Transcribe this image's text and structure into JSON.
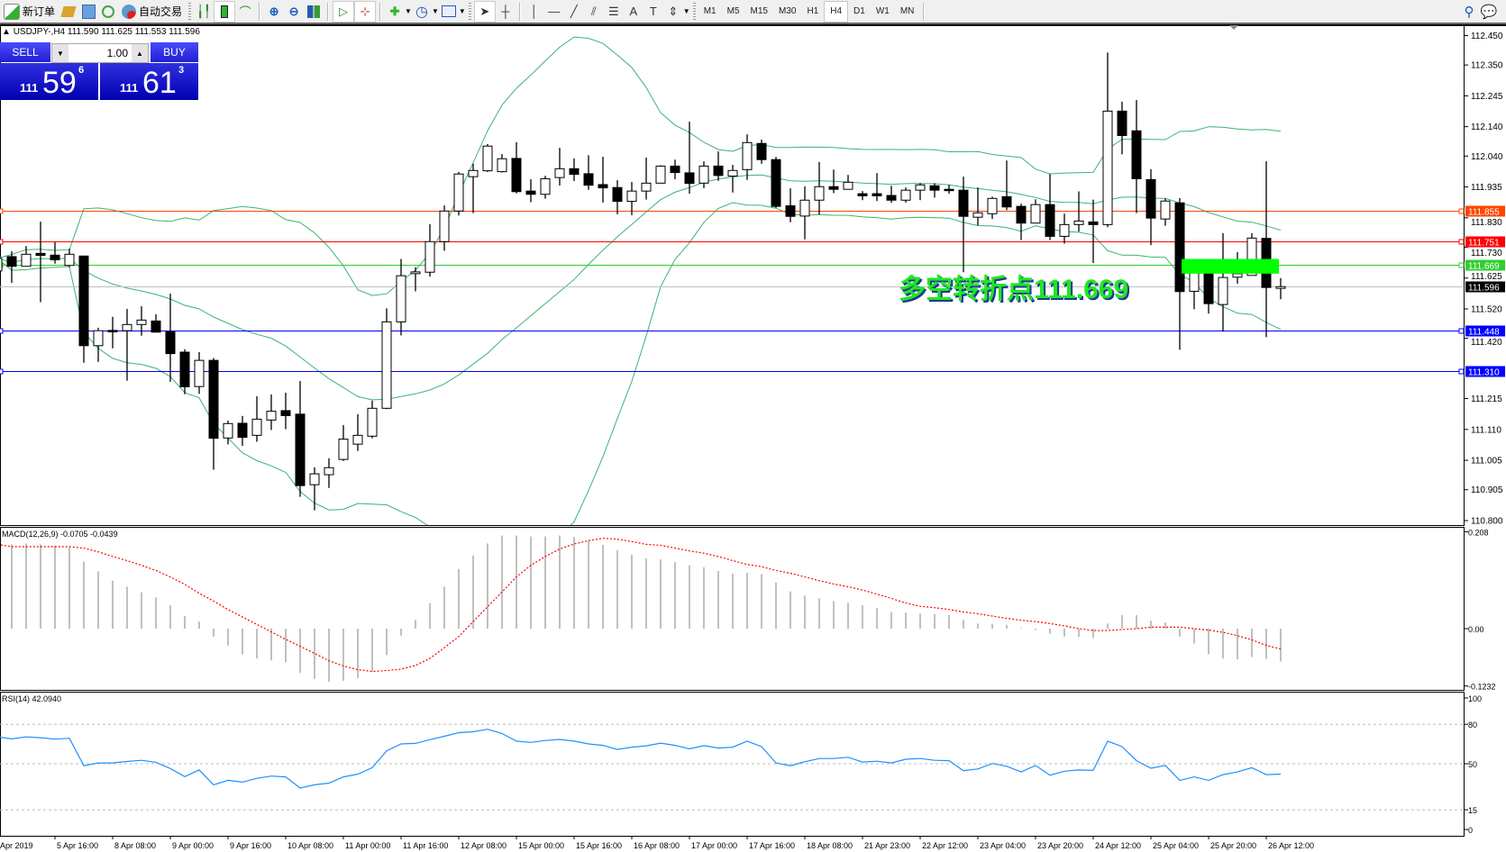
{
  "toolbar": {
    "new_order": "新订单",
    "auto_trading": "自动交易",
    "timeframes": [
      "M1",
      "M5",
      "M15",
      "M30",
      "H1",
      "H4",
      "D1",
      "W1",
      "MN"
    ],
    "active_timeframe": "H4"
  },
  "chart_header": "USDJPY-,H4  111.590 111.625 111.553 111.596",
  "trade_panel": {
    "sell_label": "SELL",
    "buy_label": "BUY",
    "volume": "1.00",
    "sell_price": {
      "big": "111",
      "main": "59",
      "sup": "6"
    },
    "buy_price": {
      "big": "111",
      "main": "61",
      "sup": "3"
    }
  },
  "annotation": {
    "text": "多空转折点111.669",
    "color": "#22e622",
    "box_price_range": [
      111.64,
      111.69
    ],
    "box_color": "#00ff00"
  },
  "chart_data": [
    {
      "type": "candlestick",
      "symbol": "USDJPY-",
      "timeframe": "H4",
      "ylim": [
        110.8,
        112.45
      ],
      "yticks": [
        "112.450",
        "112.350",
        "112.245",
        "112.140",
        "112.040",
        "111.935",
        "111.830",
        "111.730",
        "111.625",
        "111.520",
        "111.420",
        "111.215",
        "111.110",
        "111.005",
        "110.905",
        "110.800"
      ],
      "indicator": "Bollinger Bands",
      "price_lines": [
        {
          "value": "111.855",
          "color": "#ff4500"
        },
        {
          "value": "111.751",
          "color": "#ff0000"
        },
        {
          "value": "111.669",
          "color": "#32cd32"
        },
        {
          "value": "111.596",
          "color": "#000000",
          "line_color": "#c0c0c0"
        },
        {
          "value": "111.448",
          "color": "#0000ff"
        },
        {
          "value": "111.310",
          "color": "#0000ff"
        }
      ],
      "ohlc": [
        [
          111.649,
          111.7,
          111.64,
          111.692
        ],
        [
          111.698,
          111.716,
          111.609,
          111.665
        ],
        [
          111.665,
          111.734,
          111.665,
          111.706
        ],
        [
          111.709,
          111.817,
          111.543,
          111.702
        ],
        [
          111.703,
          111.747,
          111.674,
          111.687
        ],
        [
          111.668,
          111.725,
          111.662,
          111.706
        ],
        [
          111.7,
          111.7,
          111.337,
          111.395
        ],
        [
          111.395,
          111.456,
          111.34,
          111.446
        ],
        [
          111.447,
          111.493,
          111.386,
          111.442
        ],
        [
          111.446,
          111.52,
          111.276,
          111.467
        ],
        [
          111.467,
          111.529,
          111.429,
          111.482
        ],
        [
          111.479,
          111.502,
          111.441,
          111.441
        ],
        [
          111.443,
          111.572,
          111.272,
          111.368
        ],
        [
          111.373,
          111.383,
          111.23,
          111.255
        ],
        [
          111.256,
          111.373,
          111.231,
          111.345
        ],
        [
          111.345,
          111.353,
          110.973,
          111.08
        ],
        [
          111.081,
          111.14,
          111.059,
          111.13
        ],
        [
          111.131,
          111.156,
          111.054,
          111.083
        ],
        [
          111.09,
          111.223,
          111.068,
          111.145
        ],
        [
          111.142,
          111.229,
          111.108,
          111.172
        ],
        [
          111.174,
          111.235,
          111.111,
          111.157
        ],
        [
          111.162,
          111.275,
          110.881,
          110.919
        ],
        [
          110.922,
          110.981,
          110.835,
          110.959
        ],
        [
          110.956,
          111.012,
          110.911,
          110.98
        ],
        [
          111.008,
          111.125,
          111.003,
          111.077
        ],
        [
          111.06,
          111.162,
          111.037,
          111.09
        ],
        [
          111.087,
          111.208,
          111.08,
          111.182
        ],
        [
          111.182,
          111.522,
          111.179,
          111.476
        ],
        [
          111.476,
          111.69,
          111.43,
          111.633
        ],
        [
          111.64,
          111.662,
          111.58,
          111.646
        ],
        [
          111.645,
          111.808,
          111.63,
          111.749
        ],
        [
          111.749,
          111.872,
          111.718,
          111.853
        ],
        [
          111.853,
          111.986,
          111.838,
          111.979
        ],
        [
          111.97,
          112.014,
          111.846,
          111.991
        ],
        [
          111.99,
          112.081,
          111.986,
          112.074
        ],
        [
          111.987,
          112.047,
          111.984,
          112.031
        ],
        [
          112.032,
          112.087,
          111.913,
          111.919
        ],
        [
          111.921,
          111.961,
          111.883,
          111.91
        ],
        [
          111.91,
          111.973,
          111.895,
          111.963
        ],
        [
          111.967,
          112.068,
          111.94,
          111.997
        ],
        [
          111.997,
          112.032,
          111.955,
          111.978
        ],
        [
          111.98,
          112.043,
          111.925,
          111.941
        ],
        [
          111.943,
          112.038,
          111.882,
          111.932
        ],
        [
          111.933,
          111.958,
          111.842,
          111.886
        ],
        [
          111.886,
          111.952,
          111.839,
          111.921
        ],
        [
          111.921,
          112.035,
          111.892,
          111.948
        ],
        [
          111.948,
          112.009,
          111.948,
          112.006
        ],
        [
          112.006,
          112.028,
          111.961,
          111.984
        ],
        [
          111.983,
          112.157,
          111.912,
          111.947
        ],
        [
          111.948,
          112.022,
          111.931,
          112.006
        ],
        [
          112.006,
          112.056,
          111.956,
          111.974
        ],
        [
          111.972,
          112.01,
          111.916,
          111.991
        ],
        [
          111.994,
          112.114,
          111.959,
          112.086
        ],
        [
          112.083,
          112.096,
          112.014,
          112.028
        ],
        [
          112.028,
          112.037,
          111.864,
          111.869
        ],
        [
          111.871,
          111.93,
          111.815,
          111.835
        ],
        [
          111.836,
          111.937,
          111.757,
          111.89
        ],
        [
          111.89,
          112.02,
          111.841,
          111.936
        ],
        [
          111.936,
          111.994,
          111.914,
          111.927
        ],
        [
          111.927,
          111.976,
          111.927,
          111.951
        ],
        [
          111.912,
          111.921,
          111.89,
          111.905
        ],
        [
          111.912,
          111.982,
          111.887,
          111.905
        ],
        [
          111.906,
          111.939,
          111.881,
          111.89
        ],
        [
          111.89,
          111.933,
          111.882,
          111.924
        ],
        [
          111.924,
          111.948,
          111.89,
          111.942
        ],
        [
          111.939,
          111.948,
          111.899,
          111.924
        ],
        [
          111.927,
          111.942,
          111.912,
          111.924
        ],
        [
          111.924,
          111.97,
          111.645,
          111.835
        ],
        [
          111.832,
          111.933,
          111.804,
          111.847
        ],
        [
          111.844,
          111.902,
          111.826,
          111.896
        ],
        [
          111.902,
          112.025,
          111.856,
          111.867
        ],
        [
          111.869,
          111.878,
          111.754,
          111.812
        ],
        [
          111.812,
          111.893,
          111.812,
          111.875
        ],
        [
          111.875,
          111.979,
          111.754,
          111.767
        ],
        [
          111.767,
          111.844,
          111.742,
          111.807
        ],
        [
          111.807,
          111.92,
          111.783,
          111.819
        ],
        [
          111.816,
          111.892,
          111.676,
          111.807
        ],
        [
          111.807,
          112.392,
          111.798,
          112.193
        ],
        [
          112.193,
          112.225,
          112.046,
          112.11
        ],
        [
          112.126,
          112.231,
          111.846,
          111.963
        ],
        [
          111.96,
          111.995,
          111.737,
          111.829
        ],
        [
          111.826,
          111.896,
          111.803,
          111.887
        ],
        [
          111.881,
          111.897,
          111.381,
          111.579
        ],
        [
          111.58,
          111.69,
          111.519,
          111.68
        ],
        [
          111.66,
          111.68,
          111.504,
          111.538
        ],
        [
          111.535,
          111.778,
          111.443,
          111.627
        ],
        [
          111.628,
          111.713,
          111.606,
          111.64
        ],
        [
          111.634,
          111.778,
          111.634,
          111.761
        ],
        [
          111.76,
          112.022,
          111.424,
          111.593
        ],
        [
          111.59,
          111.625,
          111.553,
          111.596
        ]
      ],
      "xtick_labels": [
        "5 Apr 2019",
        "5 Apr 16:00",
        "8 Apr 08:00",
        "9 Apr 00:00",
        "9 Apr 16:00",
        "10 Apr 08:00",
        "11 Apr 00:00",
        "11 Apr 16:00",
        "12 Apr 08:00",
        "15 Apr 00:00",
        "15 Apr 16:00",
        "16 Apr 08:00",
        "17 Apr 00:00",
        "17 Apr 16:00",
        "18 Apr 08:00",
        "21 Apr 23:00",
        "22 Apr 12:00",
        "23 Apr 04:00",
        "23 Apr 20:00",
        "24 Apr 12:00",
        "25 Apr 04:00",
        "25 Apr 20:00",
        "26 Apr 12:00"
      ]
    },
    {
      "type": "bar",
      "title": "MACD(12,26,9) -0.0705 -0.0439",
      "ylim": [
        -0.1232,
        0.208
      ],
      "yticks": [
        "0.208",
        "0.00",
        "-0.1232"
      ],
      "histogram": [
        0.181,
        0.181,
        0.183,
        0.181,
        0.178,
        0.175,
        0.144,
        0.123,
        0.103,
        0.09,
        0.078,
        0.067,
        0.05,
        0.027,
        0.015,
        -0.017,
        -0.036,
        -0.055,
        -0.064,
        -0.068,
        -0.072,
        -0.095,
        -0.108,
        -0.114,
        -0.112,
        -0.106,
        -0.092,
        -0.057,
        -0.015,
        0.019,
        0.055,
        0.09,
        0.128,
        0.157,
        0.183,
        0.2,
        0.2,
        0.198,
        0.198,
        0.2,
        0.197,
        0.189,
        0.18,
        0.168,
        0.159,
        0.151,
        0.149,
        0.143,
        0.136,
        0.132,
        0.124,
        0.118,
        0.12,
        0.117,
        0.099,
        0.08,
        0.071,
        0.065,
        0.059,
        0.055,
        0.05,
        0.044,
        0.036,
        0.034,
        0.032,
        0.031,
        0.029,
        0.019,
        0.011,
        0.01,
        0.008,
        0.001,
        -0.003,
        -0.011,
        -0.017,
        -0.018,
        -0.02,
        0.011,
        0.029,
        0.029,
        0.017,
        0.013,
        -0.017,
        -0.032,
        -0.055,
        -0.064,
        -0.066,
        -0.061,
        -0.065,
        -0.0705
      ],
      "signal": [
        0.181,
        0.176,
        0.176,
        0.176,
        0.176,
        0.176,
        0.173,
        0.165,
        0.155,
        0.146,
        0.136,
        0.125,
        0.111,
        0.095,
        0.076,
        0.059,
        0.041,
        0.025,
        0.009,
        -0.007,
        -0.023,
        -0.038,
        -0.053,
        -0.069,
        -0.08,
        -0.088,
        -0.092,
        -0.09,
        -0.087,
        -0.079,
        -0.064,
        -0.041,
        -0.017,
        0.015,
        0.047,
        0.079,
        0.111,
        0.136,
        0.155,
        0.171,
        0.182,
        0.189,
        0.194,
        0.192,
        0.187,
        0.181,
        0.179,
        0.173,
        0.167,
        0.162,
        0.155,
        0.146,
        0.138,
        0.133,
        0.125,
        0.119,
        0.111,
        0.103,
        0.096,
        0.09,
        0.083,
        0.074,
        0.065,
        0.055,
        0.048,
        0.045,
        0.041,
        0.036,
        0.032,
        0.027,
        0.022,
        0.018,
        0.015,
        0.011,
        0.006,
        0.0,
        -0.004,
        -0.004,
        -0.002,
        0.0,
        0.003,
        0.003,
        0.003,
        0.0,
        -0.003,
        -0.008,
        -0.015,
        -0.024,
        -0.036,
        -0.0439
      ],
      "colors": {
        "histogram": "#c0c0c0",
        "signal": "#ff0000"
      }
    },
    {
      "type": "line",
      "title": "RSI(14) 42.0940",
      "ylim": [
        0,
        100
      ],
      "yticks": [
        "100",
        "80",
        "50",
        "15",
        "0"
      ],
      "levels": [
        80,
        50,
        15
      ],
      "values": [
        70.4,
        68.9,
        70.4,
        69.8,
        68.7,
        69.4,
        48.5,
        50.6,
        50.6,
        51.7,
        52.6,
        51.1,
        46.4,
        40.2,
        45.3,
        34.0,
        37.4,
        36.0,
        38.9,
        40.6,
        40.0,
        31.5,
        34.0,
        35.3,
        40.0,
        42.1,
        47.0,
        59.8,
        65.1,
        65.5,
        68.3,
        70.9,
        73.6,
        74.3,
        76.2,
        73.0,
        67.2,
        66.2,
        67.7,
        68.5,
        67.2,
        65.1,
        64.0,
        60.9,
        62.6,
        63.6,
        65.7,
        64.0,
        61.3,
        63.8,
        61.9,
        62.6,
        67.2,
        63.0,
        50.6,
        48.5,
        51.5,
        54.0,
        54.0,
        54.9,
        51.3,
        51.9,
        50.6,
        53.4,
        54.0,
        52.6,
        52.3,
        44.7,
        46.0,
        50.2,
        48.1,
        43.8,
        48.7,
        41.3,
        44.3,
        45.3,
        44.9,
        67.2,
        63.0,
        52.3,
        46.6,
        48.7,
        37.4,
        40.0,
        37.4,
        41.7,
        43.8,
        47.0,
        41.7,
        42.094
      ],
      "color": "#1e90ff"
    }
  ]
}
